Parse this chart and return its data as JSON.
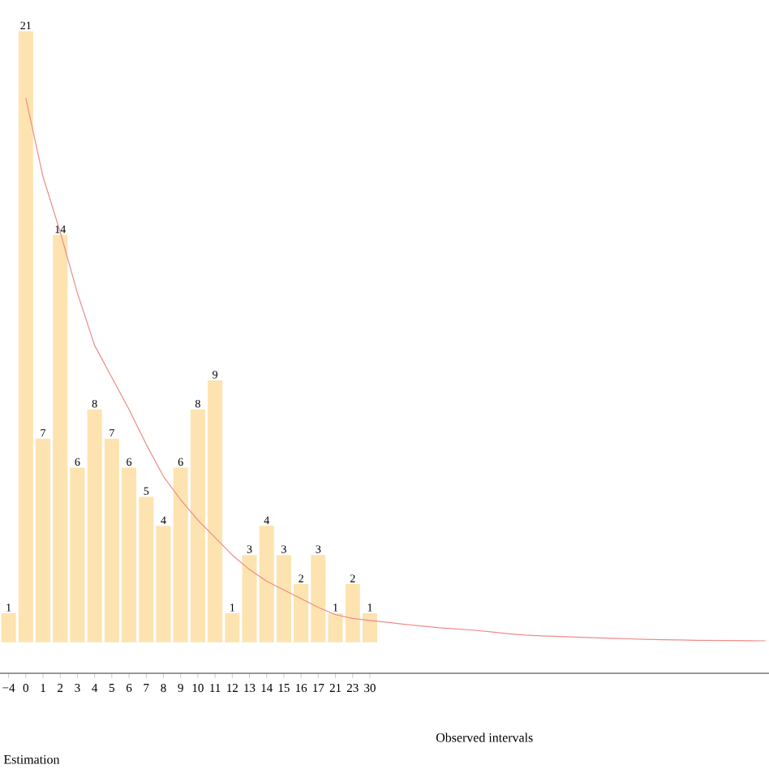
{
  "chart_data": {
    "type": "bar",
    "xlabel": "Observed intervals",
    "annotations": [
      "Estimation"
    ],
    "categories": [
      "−4",
      "0",
      "1",
      "2",
      "3",
      "4",
      "5",
      "6",
      "7",
      "8",
      "9",
      "10",
      "11",
      "12",
      "13",
      "14",
      "15",
      "16",
      "17",
      "21",
      "23",
      "30",
      null,
      null,
      null,
      null,
      null,
      null,
      null,
      null,
      null,
      null,
      null,
      null,
      null,
      null,
      null,
      null,
      null,
      null,
      null,
      null,
      null,
      null,
      null
    ],
    "grid": false,
    "tick_labels": "x",
    "series": [
      {
        "color": "#fde3b0",
        "values": [
          1,
          21,
          7,
          14,
          6,
          8,
          7,
          6,
          5,
          4,
          6,
          8,
          9,
          1,
          3,
          4,
          3,
          2,
          3,
          1,
          2,
          1,
          null,
          null,
          null,
          null,
          null,
          null,
          null,
          null,
          null,
          null,
          null,
          null,
          null,
          null,
          null,
          null,
          null,
          null,
          null,
          null,
          null,
          null,
          null
        ],
        "value_labels": [
          "1",
          "21",
          "7",
          "14",
          "6",
          "8",
          "7",
          "6",
          "5",
          "4",
          "6",
          "8",
          "9",
          "1",
          "3",
          "4",
          "3",
          "2",
          "3",
          "1",
          "2",
          "1",
          null,
          null,
          null,
          null,
          null,
          null,
          null,
          null,
          null,
          null,
          null,
          null,
          null,
          null,
          null,
          null,
          null,
          null,
          null,
          null,
          null,
          null,
          null
        ]
      },
      {
        "type": "line",
        "color": "#ef8a8a",
        "values": [
          null,
          18.7,
          16.0,
          14.1,
          12.0,
          10.2,
          9.1,
          8.0,
          6.8,
          5.7,
          4.9,
          4.2,
          3.6,
          3.0,
          2.5,
          2.1,
          1.8,
          1.5,
          1.2,
          0.95,
          0.82,
          0.75,
          0.69,
          0.62,
          0.56,
          0.5,
          0.46,
          0.42,
          0.36,
          0.3,
          0.25,
          0.22,
          0.2,
          0.18,
          0.16,
          0.14,
          0.12,
          0.1,
          0.09,
          0.08,
          0.07,
          0.065,
          0.06,
          0.055,
          0.05
        ]
      }
    ]
  }
}
